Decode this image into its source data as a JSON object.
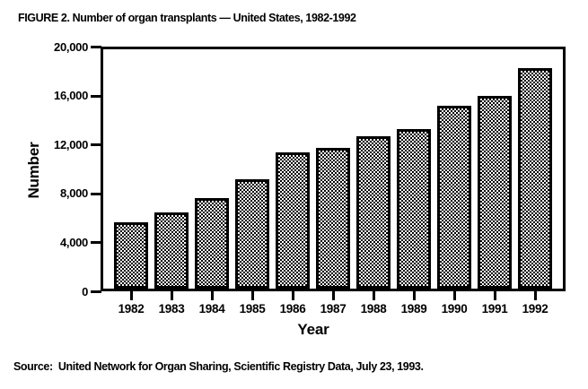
{
  "title": "FIGURE 2. Number of organ transplants — United States, 1982-1992",
  "source": "Source:  United Network for Organ Sharing, Scientific Registry Data, July 23, 1993.",
  "colors": {
    "ink": "#000000",
    "background": "#ffffff",
    "bar_fill_pattern": "black-white-checkerboard-dither"
  },
  "chart_data": {
    "type": "bar",
    "title": "FIGURE 2. Number of organ transplants — United States, 1982-1992",
    "categories": [
      "1982",
      "1983",
      "1984",
      "1985",
      "1986",
      "1987",
      "1988",
      "1989",
      "1990",
      "1991",
      "1992"
    ],
    "values": [
      5550,
      6400,
      7550,
      9150,
      11400,
      11750,
      12750,
      13350,
      15250,
      16100,
      18400
    ],
    "xlabel": "Year",
    "ylabel": "Number",
    "ylim": [
      0,
      20000
    ],
    "yticks": [
      0,
      4000,
      8000,
      12000,
      16000,
      20000
    ],
    "ytick_labels": [
      "0",
      "4,000",
      "8,000",
      "12,000",
      "16,000",
      "20,000"
    ],
    "grid": false,
    "legend": "none",
    "bar_border_color": "#000000",
    "plot_frame": "full-box"
  }
}
